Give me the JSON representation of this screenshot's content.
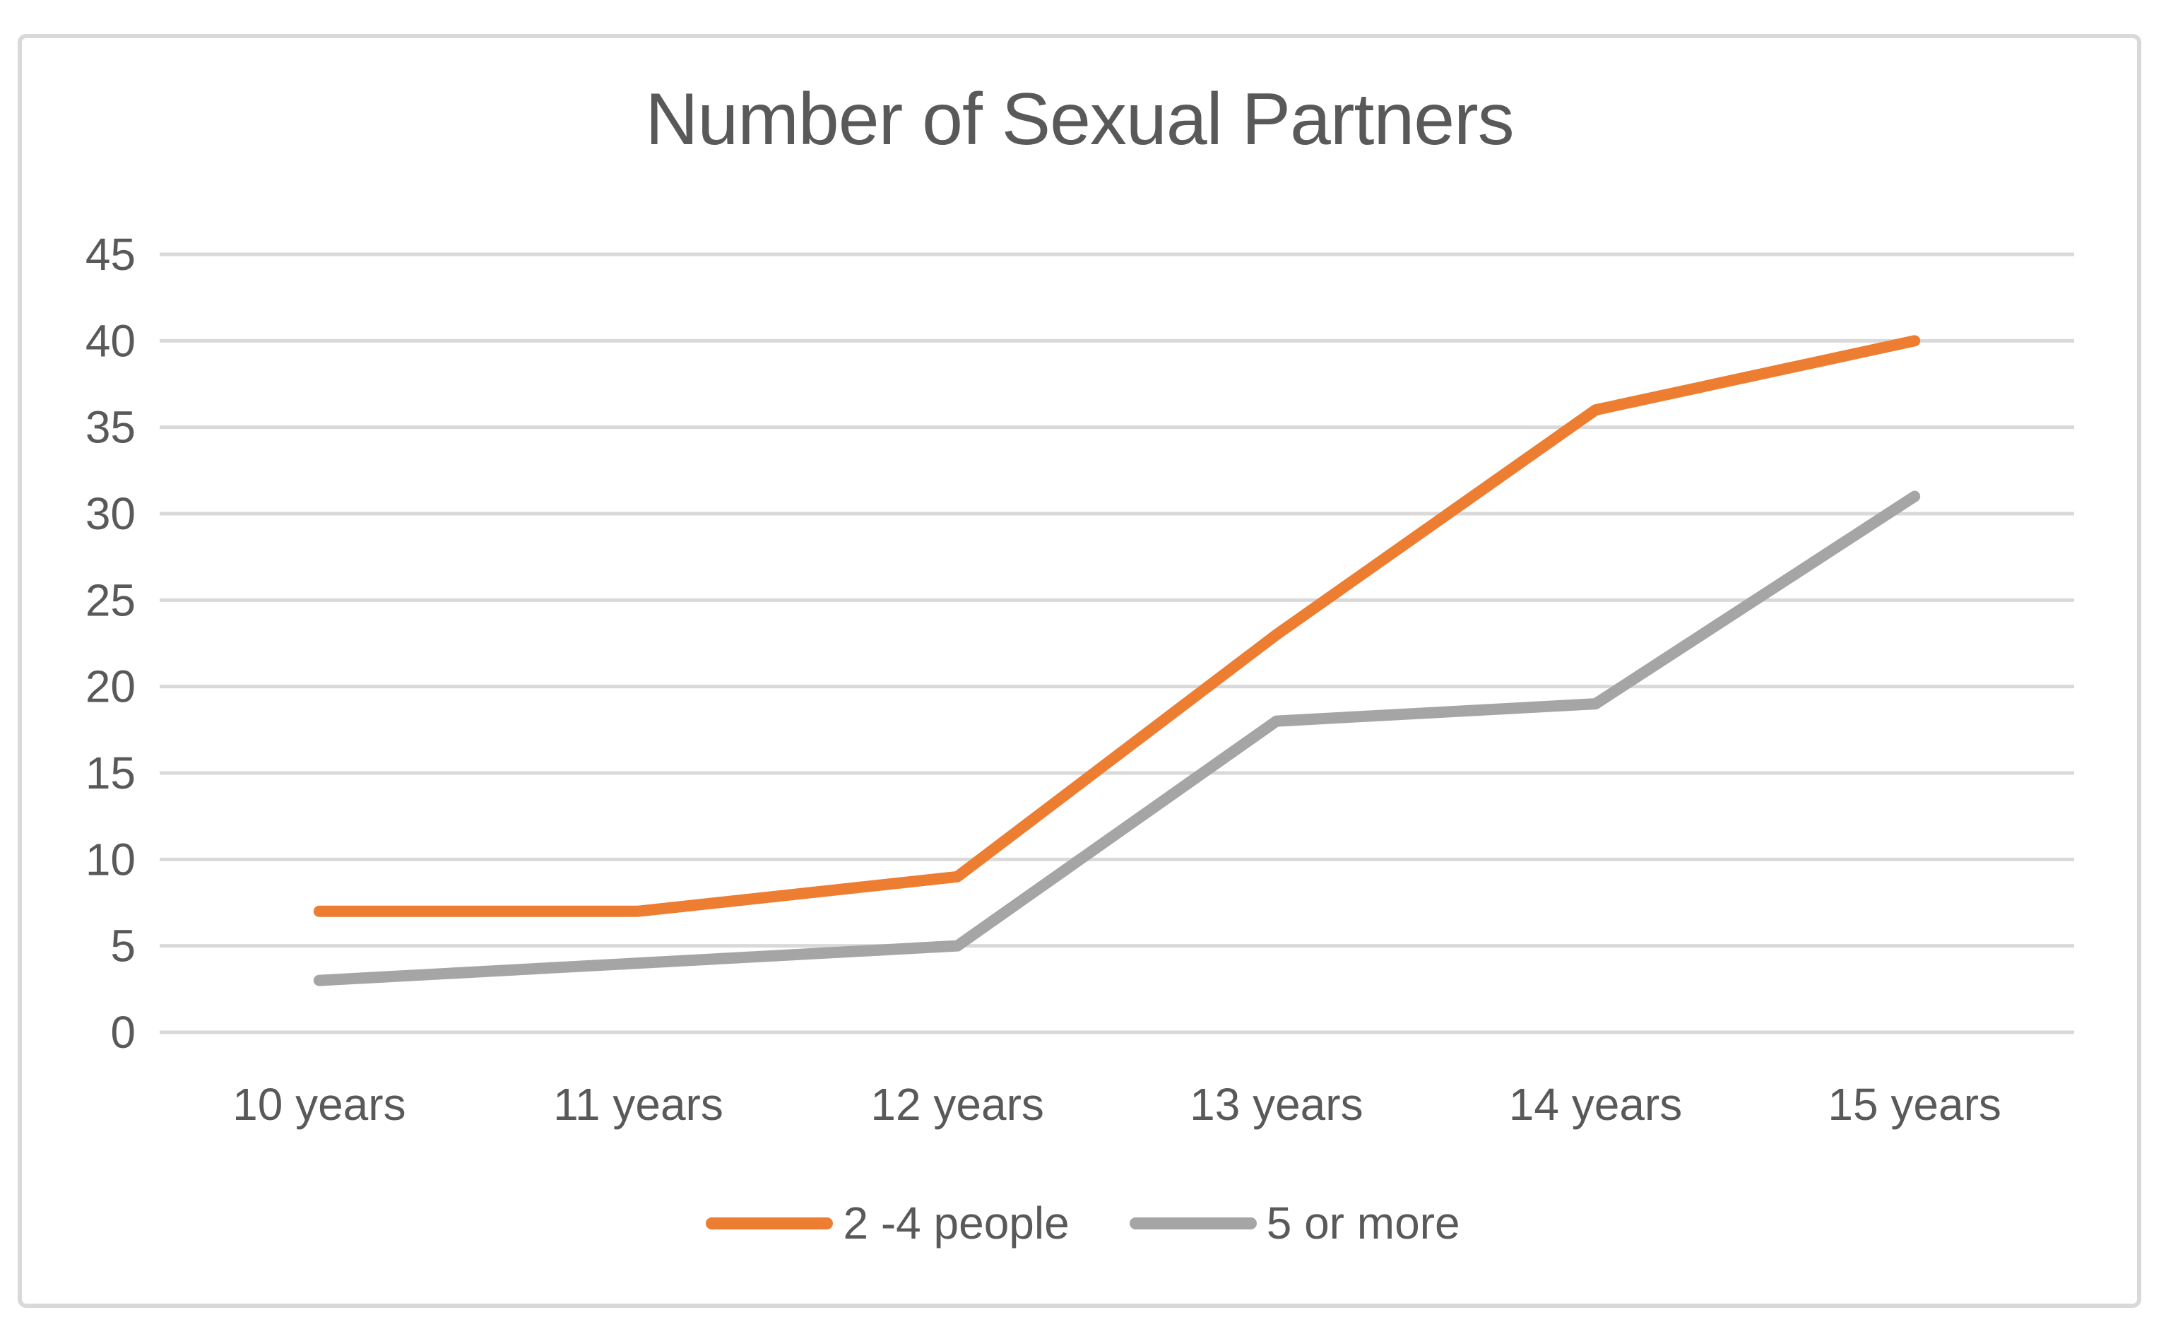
{
  "chart_data": {
    "type": "line",
    "title": "Number of Sexual Partners",
    "categories": [
      "10 years",
      "11 years",
      "12 years",
      "13 years",
      "14 years",
      "15 years"
    ],
    "series": [
      {
        "name": "2 -4 people",
        "color": "#ED7D31",
        "values": [
          7,
          7,
          9,
          23,
          36,
          40
        ]
      },
      {
        "name": "5 or more",
        "color": "#A5A5A5",
        "values": [
          3,
          4,
          5,
          18,
          19,
          31
        ]
      }
    ],
    "xlabel": "",
    "ylabel": "",
    "ylim": [
      0,
      45
    ],
    "yticks": [
      0,
      5,
      10,
      15,
      20,
      25,
      30,
      35,
      40,
      45
    ],
    "grid": true,
    "legend_position": "bottom",
    "line_width": 16,
    "colors": {
      "gridline": "#D9D9D9",
      "axis_text": "#595959",
      "title_text": "#595959",
      "frame_border": "#D9D9D9",
      "background": "#FFFFFF"
    }
  }
}
